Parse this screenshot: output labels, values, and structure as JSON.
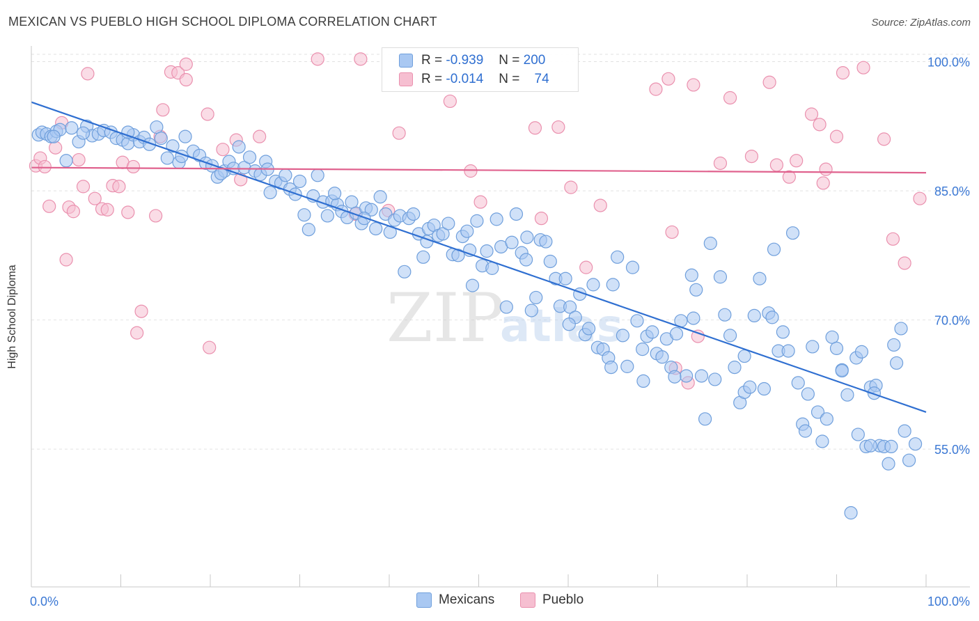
{
  "title": "MEXICAN VS PUEBLO HIGH SCHOOL DIPLOMA CORRELATION CHART",
  "source": "Source: ZipAtlas.com",
  "watermark": {
    "zip": "ZIP",
    "atlas": "atlas"
  },
  "colors": {
    "blue_fill": "#a9c8f2",
    "blue_stroke": "#6f9fdc",
    "blue_line": "#2f6fd1",
    "pink_fill": "#f6bfd1",
    "pink_stroke": "#ea90ae",
    "pink_line": "#e0628e",
    "axis_text_blue": "#3b78d4",
    "grid": "#e2e2e2"
  },
  "legend": {
    "rows": [
      {
        "r_label": "R =",
        "r_value": "-0.939",
        "n_label": "N =",
        "n_value": "200"
      },
      {
        "r_label": "R =",
        "r_value": "-0.014",
        "n_label": "N =",
        "n_value": "74"
      }
    ]
  },
  "bottom_legend": [
    "Mexicans",
    "Pueblo"
  ],
  "chart_data": {
    "type": "scatter",
    "title": "MEXICAN VS PUEBLO HIGH SCHOOL DIPLOMA CORRELATION CHART",
    "xlabel": "",
    "ylabel": "High School Diploma",
    "xlim": [
      0,
      100
    ],
    "ylim": [
      39,
      101.5
    ],
    "x_tick_labels": [
      "0.0%",
      "100.0%"
    ],
    "y_ticks": [
      {
        "value": 100,
        "label": "100.0%"
      },
      {
        "value": 85,
        "label": "85.0%"
      },
      {
        "value": 70,
        "label": "70.0%"
      },
      {
        "value": 55,
        "label": "55.0%"
      }
    ],
    "grid": true,
    "legend_position": "top-center",
    "series": [
      {
        "name": "Mexicans",
        "r": -0.939,
        "n": 200,
        "trend": {
          "x": [
            0,
            100
          ],
          "y": [
            95.3,
            59.3
          ]
        },
        "points": [
          [
            0.8,
            91.5
          ],
          [
            1.2,
            91.8
          ],
          [
            1.7,
            91.6
          ],
          [
            2.2,
            91.3
          ],
          [
            2.8,
            91.9
          ],
          [
            3.2,
            92.1
          ],
          [
            3.9,
            88.5
          ],
          [
            4.5,
            92.3
          ],
          [
            5.3,
            90.7
          ],
          [
            6.2,
            92.5
          ],
          [
            6.8,
            91.4
          ],
          [
            7.5,
            91.6
          ],
          [
            8.1,
            92.0
          ],
          [
            8.9,
            91.8
          ],
          [
            9.5,
            91.1
          ],
          [
            10.2,
            90.9
          ],
          [
            10.8,
            90.5
          ],
          [
            11.4,
            91.5
          ],
          [
            12.1,
            90.7
          ],
          [
            12.6,
            91.2
          ],
          [
            13.2,
            90.4
          ],
          [
            14.0,
            92.4
          ],
          [
            14.5,
            91.1
          ],
          [
            15.2,
            88.8
          ],
          [
            15.8,
            90.2
          ],
          [
            16.5,
            88.3
          ],
          [
            17.2,
            91.3
          ],
          [
            18.1,
            89.6
          ],
          [
            18.8,
            89.1
          ],
          [
            19.5,
            88.2
          ],
          [
            20.2,
            87.9
          ],
          [
            20.8,
            86.6
          ],
          [
            21.6,
            87.3
          ],
          [
            22.1,
            88.4
          ],
          [
            22.6,
            87.6
          ],
          [
            23.2,
            90.1
          ],
          [
            23.8,
            87.7
          ],
          [
            24.4,
            88.9
          ],
          [
            25.0,
            87.3
          ],
          [
            25.6,
            86.9
          ],
          [
            26.2,
            88.4
          ],
          [
            26.7,
            84.8
          ],
          [
            27.3,
            86.1
          ],
          [
            27.9,
            85.9
          ],
          [
            28.4,
            86.8
          ],
          [
            28.9,
            85.2
          ],
          [
            29.5,
            84.6
          ],
          [
            30.0,
            86.1
          ],
          [
            30.5,
            82.2
          ],
          [
            31.0,
            80.5
          ],
          [
            31.5,
            84.4
          ],
          [
            32.0,
            86.8
          ],
          [
            32.6,
            83.7
          ],
          [
            33.1,
            82.1
          ],
          [
            33.6,
            83.8
          ],
          [
            34.2,
            83.4
          ],
          [
            34.7,
            82.6
          ],
          [
            35.3,
            81.9
          ],
          [
            35.8,
            83.7
          ],
          [
            36.3,
            82.4
          ],
          [
            36.9,
            81.2
          ],
          [
            37.4,
            83.0
          ],
          [
            38.0,
            82.8
          ],
          [
            38.5,
            80.6
          ],
          [
            39.0,
            84.3
          ],
          [
            39.6,
            82.3
          ],
          [
            40.1,
            80.2
          ],
          [
            40.6,
            81.6
          ],
          [
            41.2,
            82.1
          ],
          [
            41.7,
            75.6
          ],
          [
            42.2,
            81.8
          ],
          [
            42.7,
            82.3
          ],
          [
            43.3,
            80.0
          ],
          [
            43.8,
            77.3
          ],
          [
            44.4,
            80.6
          ],
          [
            45.0,
            81.0
          ],
          [
            45.5,
            79.8
          ],
          [
            46.0,
            80.0
          ],
          [
            46.6,
            81.2
          ],
          [
            47.1,
            77.6
          ],
          [
            47.7,
            77.5
          ],
          [
            48.2,
            79.7
          ],
          [
            48.7,
            80.3
          ],
          [
            49.3,
            74.0
          ],
          [
            49.8,
            81.5
          ],
          [
            50.4,
            76.3
          ],
          [
            50.9,
            78.0
          ],
          [
            51.5,
            76.0
          ],
          [
            52.0,
            81.7
          ],
          [
            52.5,
            78.5
          ],
          [
            53.1,
            71.5
          ],
          [
            53.7,
            79.0
          ],
          [
            54.2,
            82.3
          ],
          [
            54.8,
            77.8
          ],
          [
            55.3,
            77.0
          ],
          [
            55.9,
            71.1
          ],
          [
            56.4,
            72.6
          ],
          [
            56.9,
            79.3
          ],
          [
            57.5,
            79.1
          ],
          [
            58.0,
            76.8
          ],
          [
            58.6,
            74.8
          ],
          [
            59.1,
            71.6
          ],
          [
            59.7,
            74.8
          ],
          [
            60.2,
            71.5
          ],
          [
            60.8,
            70.3
          ],
          [
            61.3,
            73.0
          ],
          [
            61.9,
            68.3
          ],
          [
            62.3,
            69.0
          ],
          [
            62.8,
            74.1
          ],
          [
            63.3,
            66.8
          ],
          [
            63.9,
            66.6
          ],
          [
            64.5,
            65.6
          ],
          [
            65.0,
            74.1
          ],
          [
            65.5,
            77.3
          ],
          [
            66.1,
            68.2
          ],
          [
            66.6,
            64.6
          ],
          [
            67.2,
            76.1
          ],
          [
            67.7,
            69.9
          ],
          [
            68.3,
            66.6
          ],
          [
            68.8,
            68.1
          ],
          [
            69.4,
            68.6
          ],
          [
            69.9,
            66.1
          ],
          [
            70.5,
            65.7
          ],
          [
            71.0,
            67.8
          ],
          [
            71.5,
            64.5
          ],
          [
            72.1,
            68.4
          ],
          [
            72.6,
            69.9
          ],
          [
            73.2,
            63.5
          ],
          [
            73.8,
            75.2
          ],
          [
            74.3,
            73.5
          ],
          [
            74.9,
            63.5
          ],
          [
            75.3,
            58.5
          ],
          [
            75.9,
            78.9
          ],
          [
            76.4,
            63.1
          ],
          [
            77.0,
            75.0
          ],
          [
            77.5,
            70.6
          ],
          [
            78.1,
            68.2
          ],
          [
            78.6,
            64.5
          ],
          [
            79.2,
            60.4
          ],
          [
            79.7,
            61.6
          ],
          [
            80.3,
            62.2
          ],
          [
            80.8,
            70.5
          ],
          [
            81.4,
            74.8
          ],
          [
            81.9,
            62.0
          ],
          [
            82.4,
            70.8
          ],
          [
            83.0,
            78.2
          ],
          [
            83.5,
            66.4
          ],
          [
            84.0,
            68.6
          ],
          [
            84.6,
            66.4
          ],
          [
            85.1,
            80.1
          ],
          [
            85.7,
            62.7
          ],
          [
            86.2,
            57.9
          ],
          [
            86.8,
            61.4
          ],
          [
            87.3,
            66.9
          ],
          [
            87.9,
            59.3
          ],
          [
            88.4,
            55.9
          ],
          [
            88.9,
            58.5
          ],
          [
            89.5,
            68.0
          ],
          [
            90.0,
            66.7
          ],
          [
            90.6,
            64.2
          ],
          [
            91.2,
            61.3
          ],
          [
            91.6,
            47.6
          ],
          [
            92.2,
            65.6
          ],
          [
            92.4,
            56.7
          ],
          [
            92.8,
            66.3
          ],
          [
            93.3,
            55.3
          ],
          [
            93.8,
            62.2
          ],
          [
            94.4,
            62.4
          ],
          [
            94.8,
            55.4
          ],
          [
            94.2,
            61.5
          ],
          [
            95.3,
            55.3
          ],
          [
            95.8,
            53.3
          ],
          [
            96.1,
            55.3
          ],
          [
            96.7,
            65.0
          ],
          [
            97.2,
            69.0
          ],
          [
            97.6,
            57.1
          ],
          [
            98.1,
            53.7
          ],
          [
            98.8,
            55.6
          ],
          [
            2.5,
            91.3
          ],
          [
            5.8,
            91.7
          ],
          [
            10.8,
            91.8
          ],
          [
            16.8,
            89.0
          ],
          [
            21.2,
            87.0
          ],
          [
            26.4,
            87.5
          ],
          [
            33.9,
            84.7
          ],
          [
            37.2,
            81.8
          ],
          [
            44.2,
            79.1
          ],
          [
            49.0,
            78.1
          ],
          [
            55.4,
            79.6
          ],
          [
            60.1,
            69.5
          ],
          [
            64.8,
            64.5
          ],
          [
            68.4,
            62.9
          ],
          [
            71.9,
            63.4
          ],
          [
            74.0,
            70.2
          ],
          [
            79.7,
            65.8
          ],
          [
            82.8,
            70.3
          ],
          [
            86.5,
            57.1
          ],
          [
            90.6,
            64.1
          ],
          [
            93.8,
            55.4
          ],
          [
            96.4,
            67.1
          ]
        ]
      },
      {
        "name": "Pueblo",
        "r": -0.014,
        "n": 74,
        "trend": {
          "x": [
            0,
            100
          ],
          "y": [
            87.7,
            87.1
          ]
        },
        "points": [
          [
            0.5,
            87.9
          ],
          [
            1.0,
            88.8
          ],
          [
            1.5,
            87.8
          ],
          [
            2.0,
            83.2
          ],
          [
            2.7,
            90.0
          ],
          [
            3.4,
            92.9
          ],
          [
            3.9,
            77.0
          ],
          [
            4.2,
            83.1
          ],
          [
            4.7,
            82.6
          ],
          [
            5.3,
            88.6
          ],
          [
            5.8,
            85.5
          ],
          [
            6.3,
            98.6
          ],
          [
            7.1,
            84.1
          ],
          [
            7.9,
            82.9
          ],
          [
            8.5,
            82.8
          ],
          [
            9.1,
            85.6
          ],
          [
            9.8,
            85.5
          ],
          [
            10.2,
            88.3
          ],
          [
            10.8,
            82.5
          ],
          [
            11.4,
            87.8
          ],
          [
            11.8,
            68.5
          ],
          [
            12.3,
            71.0
          ],
          [
            13.9,
            82.1
          ],
          [
            14.4,
            91.3
          ],
          [
            14.7,
            94.4
          ],
          [
            15.6,
            98.8
          ],
          [
            16.4,
            98.7
          ],
          [
            17.3,
            99.7
          ],
          [
            17.3,
            97.9
          ],
          [
            19.7,
            93.9
          ],
          [
            19.9,
            66.8
          ],
          [
            21.4,
            89.8
          ],
          [
            22.9,
            90.9
          ],
          [
            23.4,
            86.3
          ],
          [
            25.5,
            91.3
          ],
          [
            32.0,
            100.3
          ],
          [
            36.2,
            82.3
          ],
          [
            36.8,
            100.3
          ],
          [
            39.9,
            82.7
          ],
          [
            41.1,
            91.7
          ],
          [
            46.8,
            95.4
          ],
          [
            49.1,
            87.3
          ],
          [
            50.2,
            83.7
          ],
          [
            56.3,
            92.3
          ],
          [
            57.0,
            81.8
          ],
          [
            58.9,
            92.4
          ],
          [
            60.3,
            85.4
          ],
          [
            62.0,
            76.1
          ],
          [
            63.6,
            83.3
          ],
          [
            69.8,
            96.8
          ],
          [
            71.2,
            98.0
          ],
          [
            71.6,
            80.2
          ],
          [
            72.0,
            64.4
          ],
          [
            73.4,
            62.7
          ],
          [
            74.0,
            97.3
          ],
          [
            74.5,
            68.1
          ],
          [
            77.0,
            88.2
          ],
          [
            78.1,
            95.8
          ],
          [
            80.5,
            89.0
          ],
          [
            82.5,
            97.6
          ],
          [
            83.3,
            88.0
          ],
          [
            84.7,
            86.6
          ],
          [
            85.5,
            88.5
          ],
          [
            87.2,
            93.9
          ],
          [
            88.1,
            92.7
          ],
          [
            88.5,
            85.9
          ],
          [
            88.8,
            87.5
          ],
          [
            90.0,
            91.3
          ],
          [
            90.7,
            98.7
          ],
          [
            93.0,
            99.3
          ],
          [
            95.3,
            91.0
          ],
          [
            96.3,
            79.4
          ],
          [
            97.6,
            76.6
          ],
          [
            99.3,
            84.1
          ]
        ]
      }
    ]
  }
}
